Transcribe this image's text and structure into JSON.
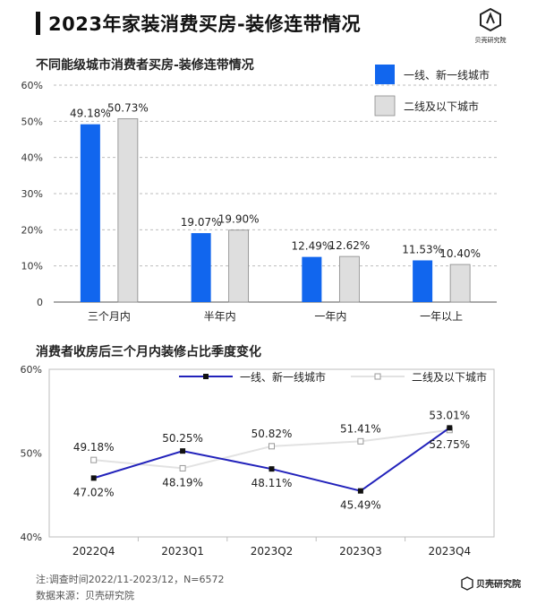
{
  "header": {
    "title": "2023年家装消费买房-装修连带情况",
    "logo_text": "贝壳研究院"
  },
  "footer": {
    "note": "注:调查时间2022/11-2023/12，N=6572",
    "source": "数据来源：贝壳研究院",
    "logo_text": "贝壳研究院"
  },
  "colors": {
    "series1": "#1166ee",
    "series2": "#dedede",
    "line1": "#2222bb",
    "line2": "#e2e2e2"
  },
  "chart_data": [
    {
      "type": "bar",
      "title": "不同能级城市消费者买房-装修连带情况",
      "categories": [
        "三个月内",
        "半年内",
        "一年内",
        "一年以上"
      ],
      "series": [
        {
          "name": "一线、新一线城市",
          "values": [
            49.18,
            19.07,
            12.49,
            11.53
          ],
          "labels": [
            "49.18%",
            "19.07%",
            "12.49%",
            "11.53%"
          ]
        },
        {
          "name": "二线及以下城市",
          "values": [
            50.73,
            19.9,
            12.62,
            10.4
          ],
          "labels": [
            "50.73%",
            "19.90%",
            "12.62%",
            "10.40%"
          ]
        }
      ],
      "ylim": [
        0,
        60
      ],
      "yticks": [
        "0",
        "10%",
        "20%",
        "30%",
        "40%",
        "50%",
        "60%"
      ],
      "legend": "top-right"
    },
    {
      "type": "line",
      "title": "消费者收房后三个月内装修占比季度变化",
      "categories": [
        "2022Q4",
        "2023Q1",
        "2023Q2",
        "2023Q3",
        "2023Q4"
      ],
      "series": [
        {
          "name": "一线、新一线城市",
          "values": [
            47.02,
            50.25,
            48.11,
            45.49,
            53.01
          ],
          "labels": [
            "47.02%",
            "50.25%",
            "48.11%",
            "45.49%",
            "53.01%"
          ]
        },
        {
          "name": "二线及以下城市",
          "values": [
            49.18,
            48.19,
            50.82,
            51.41,
            52.75
          ],
          "labels": [
            "49.18%",
            "48.19%",
            "50.82%",
            "51.41%",
            "52.75%"
          ]
        }
      ],
      "ylim": [
        40,
        60
      ],
      "yticks": [
        "40%",
        "50%",
        "60%"
      ],
      "legend": "top"
    }
  ]
}
